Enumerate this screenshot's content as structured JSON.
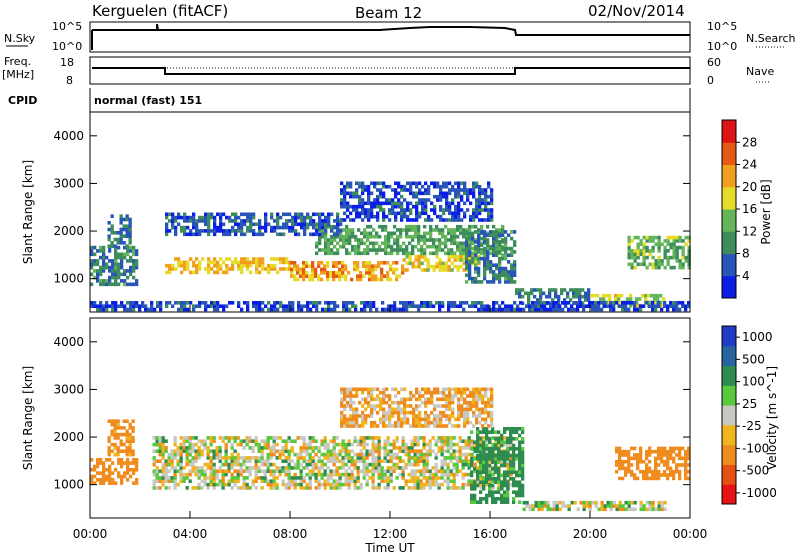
{
  "header": {
    "station": "Kerguelen (fitACF)",
    "beam": "Beam 12",
    "date": "02/Nov/2014"
  },
  "top_panels": {
    "nsky_label": "N.Sky",
    "nsky_ticks": [
      "10^5",
      "10^0"
    ],
    "nsearch_label": "N.Search",
    "nsearch_ticks": [
      "10^5",
      "10^0"
    ],
    "freq_label": "Freq.",
    "freq_unit": "[MHz]",
    "freq_ticks": [
      "18",
      "8"
    ],
    "nave_label": "Nave",
    "nave_ticks": [
      "60",
      "0"
    ],
    "cpid_label": "CPID",
    "cpid_value": "normal (fast) 151"
  },
  "colors": {
    "power_scale": [
      "#0a1ee6",
      "#2a55b8",
      "#3d8c5c",
      "#64b45a",
      "#e6dc28",
      "#f0a01e",
      "#e65a14",
      "#dc1414"
    ],
    "velocity_scale": [
      "#1e3cc8",
      "#2864a0",
      "#2e8c50",
      "#5ac83c",
      "#c8c8c0",
      "#f0b41e",
      "#f08c1e",
      "#e65014",
      "#e61414"
    ],
    "ground_scatter": "#c8c8c0"
  },
  "chart_data": [
    {
      "type": "heatmap",
      "panel": "power",
      "ylabel": "Slant Range [km]",
      "y_ticks": [
        "1000",
        "2000",
        "3000",
        "4000"
      ],
      "ylim": [
        300,
        4500
      ],
      "xlim_hours": [
        0,
        24
      ],
      "colorbar_label": "Power [dB]",
      "colorbar_ticks": [
        "4",
        "8",
        "12",
        "16",
        "20",
        "24",
        "28"
      ],
      "colorbar_range": [
        0,
        32
      ],
      "regions": [
        {
          "t": [
            0.0,
            1.9
          ],
          "r": [
            850,
            1650
          ],
          "level": 9
        },
        {
          "t": [
            0.7,
            1.6
          ],
          "r": [
            1650,
            2350
          ],
          "level": 8
        },
        {
          "t": [
            3.0,
            8.0
          ],
          "r": [
            1100,
            1450
          ],
          "level": 20
        },
        {
          "t": [
            8.0,
            12.5
          ],
          "r": [
            950,
            1350
          ],
          "level": 22
        },
        {
          "t": [
            12.5,
            15.5
          ],
          "r": [
            1150,
            1450
          ],
          "level": 19
        },
        {
          "t": [
            9.0,
            16.5
          ],
          "r": [
            1500,
            2100
          ],
          "level": 12
        },
        {
          "t": [
            15.0,
            17.0
          ],
          "r": [
            900,
            2000
          ],
          "level": 9
        },
        {
          "t": [
            17.0,
            20.0
          ],
          "r": [
            450,
            800
          ],
          "level": 8
        },
        {
          "t": [
            20.0,
            23.0
          ],
          "r": [
            400,
            650
          ],
          "level": 17
        },
        {
          "t": [
            21.5,
            24.0
          ],
          "r": [
            1200,
            1900
          ],
          "level": 13
        },
        {
          "t": [
            0.0,
            24.0
          ],
          "r": [
            320,
            500
          ],
          "level": 5
        },
        {
          "t": [
            10.0,
            16.0
          ],
          "r": [
            2200,
            3000
          ],
          "level": 5
        },
        {
          "t": [
            3.0,
            10.0
          ],
          "r": [
            1900,
            2350
          ],
          "level": 6
        }
      ]
    },
    {
      "type": "heatmap",
      "panel": "velocity",
      "ylabel": "Slant Range [km]",
      "y_ticks": [
        "1000",
        "2000",
        "3000",
        "4000"
      ],
      "ylim": [
        300,
        4500
      ],
      "xlim_hours": [
        0,
        24
      ],
      "colorbar_label": "Velocity [m s^-1]",
      "colorbar_ticks": [
        "1000",
        "500",
        "100",
        "25",
        "-25",
        "-100",
        "-500",
        "-1000"
      ],
      "colorbar_range": [
        -1250,
        1250
      ],
      "regions": [
        {
          "t": [
            0.0,
            1.9
          ],
          "r": [
            1000,
            1500
          ],
          "value": -200
        },
        {
          "t": [
            0.7,
            1.7
          ],
          "r": [
            1600,
            2350
          ],
          "value": -120
        },
        {
          "t": [
            2.5,
            16.8
          ],
          "r": [
            900,
            2000
          ],
          "value": 0
        },
        {
          "t": [
            15.2,
            17.3
          ],
          "r": [
            600,
            2200
          ],
          "value": 120
        },
        {
          "t": [
            17.3,
            23.0
          ],
          "r": [
            450,
            650
          ],
          "value": 0
        },
        {
          "t": [
            21.0,
            24.0
          ],
          "r": [
            1100,
            1800
          ],
          "value": -150
        },
        {
          "t": [
            10.0,
            16.0
          ],
          "r": [
            2200,
            3000
          ],
          "value": -60
        }
      ]
    }
  ],
  "time_axis": {
    "label": "Time UT",
    "ticks": [
      "00:00",
      "04:00",
      "08:00",
      "12:00",
      "16:00",
      "20:00",
      "00:00"
    ]
  }
}
